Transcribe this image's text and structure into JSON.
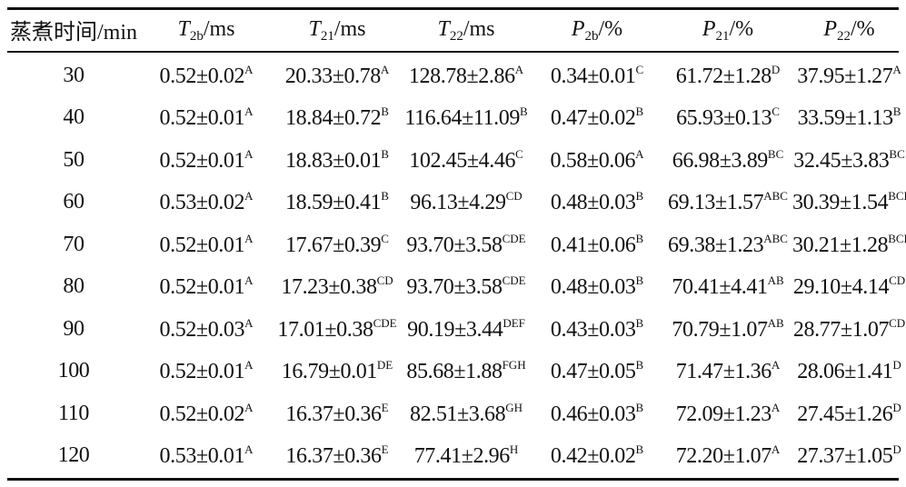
{
  "headers": [
    {
      "main": "蒸煮时间/min",
      "sym": "",
      "sub": "",
      "unit": ""
    },
    {
      "main": "",
      "sym": "T",
      "sub": "2b",
      "unit": "/ms"
    },
    {
      "main": "",
      "sym": "T",
      "sub": "21",
      "unit": "/ms"
    },
    {
      "main": "",
      "sym": "T",
      "sub": "22",
      "unit": "/ms"
    },
    {
      "main": "",
      "sym": "P",
      "sub": "2b",
      "unit": "/%"
    },
    {
      "main": "",
      "sym": "P",
      "sub": "21",
      "unit": "/%"
    },
    {
      "main": "",
      "sym": "P",
      "sub": "22",
      "unit": "/%"
    }
  ],
  "rows": [
    {
      "time": "30",
      "cells": [
        {
          "v": "0.52±0.02",
          "s": "A"
        },
        {
          "v": "20.33±0.78",
          "s": "A"
        },
        {
          "v": "128.78±2.86",
          "s": "A"
        },
        {
          "v": "0.34±0.01",
          "s": "C"
        },
        {
          "v": "61.72±1.28",
          "s": "D"
        },
        {
          "v": "37.95±1.27",
          "s": "A"
        }
      ]
    },
    {
      "time": "40",
      "cells": [
        {
          "v": "0.52±0.01",
          "s": "A"
        },
        {
          "v": "18.84±0.72",
          "s": "B"
        },
        {
          "v": "116.64±11.09",
          "s": "B"
        },
        {
          "v": "0.47±0.02",
          "s": "B"
        },
        {
          "v": "65.93±0.13",
          "s": "C"
        },
        {
          "v": "33.59±1.13",
          "s": "B"
        }
      ]
    },
    {
      "time": "50",
      "cells": [
        {
          "v": "0.52±0.01",
          "s": "A"
        },
        {
          "v": "18.83±0.01",
          "s": "B"
        },
        {
          "v": "102.45±4.46",
          "s": "C"
        },
        {
          "v": "0.58±0.06",
          "s": "A"
        },
        {
          "v": "66.98±3.89",
          "s": "BC"
        },
        {
          "v": "32.45±3.83",
          "s": "BC"
        }
      ]
    },
    {
      "time": "60",
      "cells": [
        {
          "v": "0.53±0.02",
          "s": "A"
        },
        {
          "v": "18.59±0.41",
          "s": "B"
        },
        {
          "v": "96.13±4.29",
          "s": "CD"
        },
        {
          "v": "0.48±0.03",
          "s": "B"
        },
        {
          "v": "69.13±1.57",
          "s": "ABC"
        },
        {
          "v": "30.39±1.54",
          "s": "BCD"
        }
      ]
    },
    {
      "time": "70",
      "cells": [
        {
          "v": "0.52±0.01",
          "s": "A"
        },
        {
          "v": "17.67±0.39",
          "s": "C"
        },
        {
          "v": "93.70±3.58",
          "s": "CDE"
        },
        {
          "v": "0.41±0.06",
          "s": "B"
        },
        {
          "v": "69.38±1.23",
          "s": "ABC"
        },
        {
          "v": "30.21±1.28",
          "s": "BCD"
        }
      ]
    },
    {
      "time": "80",
      "cells": [
        {
          "v": "0.52±0.01",
          "s": "A"
        },
        {
          "v": "17.23±0.38",
          "s": "CD"
        },
        {
          "v": "93.70±3.58",
          "s": "CDE"
        },
        {
          "v": "0.48±0.03",
          "s": "B"
        },
        {
          "v": "70.41±4.41",
          "s": "AB"
        },
        {
          "v": "29.10±4.14",
          "s": "CD"
        }
      ]
    },
    {
      "time": "90",
      "cells": [
        {
          "v": "0.52±0.03",
          "s": "A"
        },
        {
          "v": "17.01±0.38",
          "s": "CDE"
        },
        {
          "v": "90.19±3.44",
          "s": "DEF"
        },
        {
          "v": "0.43±0.03",
          "s": "B"
        },
        {
          "v": "70.79±1.07",
          "s": "AB"
        },
        {
          "v": "28.77±1.07",
          "s": "CD"
        }
      ]
    },
    {
      "time": "100",
      "cells": [
        {
          "v": "0.52±0.01",
          "s": "A"
        },
        {
          "v": "16.79±0.01",
          "s": "DE"
        },
        {
          "v": "85.68±1.88",
          "s": "FGH"
        },
        {
          "v": "0.47±0.05",
          "s": "B"
        },
        {
          "v": "71.47±1.36",
          "s": "A"
        },
        {
          "v": "28.06±1.41",
          "s": "D"
        }
      ]
    },
    {
      "time": "110",
      "cells": [
        {
          "v": "0.52±0.02",
          "s": "A"
        },
        {
          "v": "16.37±0.36",
          "s": "E"
        },
        {
          "v": "82.51±3.68",
          "s": "GH"
        },
        {
          "v": "0.46±0.03",
          "s": "B"
        },
        {
          "v": "72.09±1.23",
          "s": "A"
        },
        {
          "v": "27.45±1.26",
          "s": "D"
        }
      ]
    },
    {
      "time": "120",
      "cells": [
        {
          "v": "0.53±0.01",
          "s": "A"
        },
        {
          "v": "16.37±0.36",
          "s": "E"
        },
        {
          "v": "77.41±2.96",
          "s": "H"
        },
        {
          "v": "0.42±0.02",
          "s": "B"
        },
        {
          "v": "72.20±1.07",
          "s": "A"
        },
        {
          "v": "27.37±1.05",
          "s": "D"
        }
      ]
    }
  ]
}
